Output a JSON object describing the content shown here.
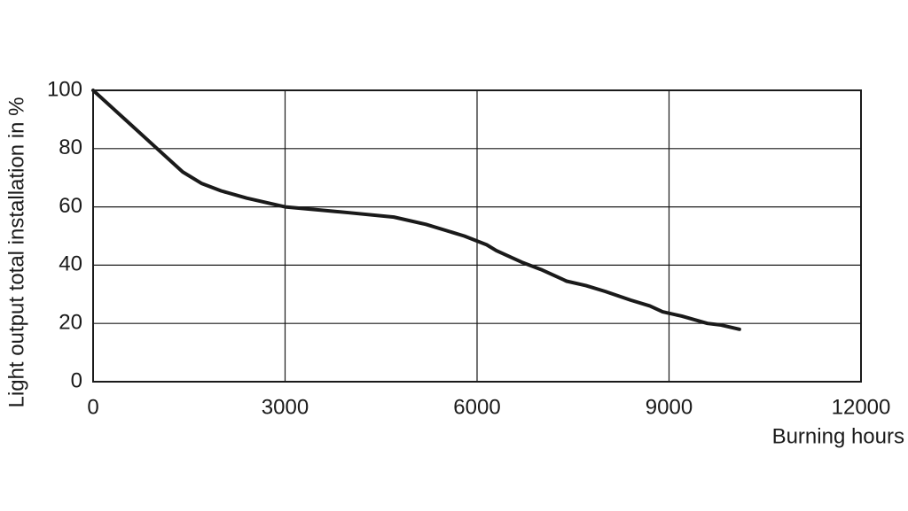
{
  "chart_data": {
    "type": "line",
    "x_label": "Burning hours",
    "y_label": "Light output total installation in %",
    "x": [
      0,
      500,
      1000,
      1400,
      1700,
      2000,
      2400,
      3000,
      3500,
      4000,
      4700,
      5200,
      5800,
      6150,
      6300,
      6700,
      7000,
      7400,
      7700,
      8000,
      8400,
      8700,
      8900,
      9200,
      9600,
      9800,
      10100
    ],
    "series": [
      {
        "name": "Light output",
        "color": "#1a1a1a",
        "values": [
          100,
          90,
          80,
          72,
          68,
          65.5,
          63,
          60,
          59,
          58,
          56.5,
          54,
          50,
          47,
          45,
          41,
          38.5,
          34.5,
          33,
          31,
          28,
          26,
          24,
          22.5,
          20,
          19.5,
          18
        ]
      }
    ],
    "xlim": [
      0,
      12000
    ],
    "xticks": [
      0,
      3000,
      6000,
      9000,
      12000
    ],
    "ylim": [
      0,
      100
    ],
    "yticks": [
      0,
      20,
      40,
      60,
      80,
      100
    ],
    "grid": true
  }
}
